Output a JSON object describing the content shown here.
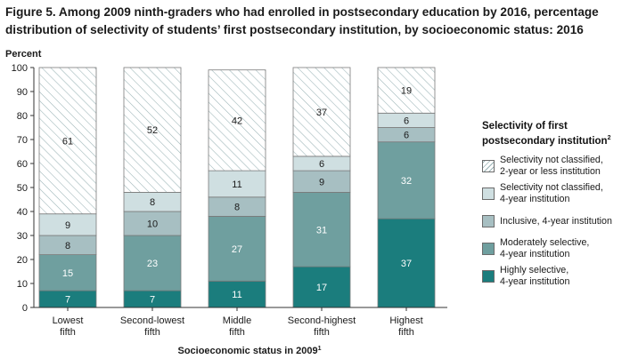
{
  "title": {
    "line1": "Figure 5. Among 2009 ninth-graders who had enrolled in postsecondary education by 2016, percentage",
    "line2": "distribution of selectivity of students’ first postsecondary institution, by socioeconomic status: 2016"
  },
  "chart_data": {
    "type": "bar",
    "stacked": true,
    "ylabel": "Percent",
    "xlabel": "Socioeconomic status in 2009",
    "xlabel_footnote": "1",
    "ylim": [
      0,
      100
    ],
    "yticks": [
      "0",
      "10",
      "20",
      "30",
      "40",
      "50",
      "60",
      "70",
      "80",
      "90",
      "100"
    ],
    "grid": false,
    "legend_position": "right",
    "categories": [
      [
        "Lowest",
        "fifth"
      ],
      [
        "Second-lowest",
        "fifth"
      ],
      [
        "Middle",
        "fifth"
      ],
      [
        "Second-highest",
        "fifth"
      ],
      [
        "Highest",
        "fifth"
      ]
    ],
    "series": [
      {
        "name": "Highly selective, 4-year institution",
        "legend": [
          "Highly selective,",
          "4-year institution"
        ],
        "color": "#1b7d7d",
        "pattern": "solid",
        "label_color": "#ffffff",
        "values": [
          7,
          7,
          11,
          17,
          37
        ]
      },
      {
        "name": "Moderately selective, 4-year institution",
        "legend": [
          "Moderately selective,",
          "4-year institution"
        ],
        "color": "#6f9f9f",
        "pattern": "solid",
        "label_color": "#ffffff",
        "values": [
          15,
          23,
          27,
          31,
          32
        ]
      },
      {
        "name": "Inclusive, 4-year institution",
        "legend": [
          "Inclusive, 4-year institution"
        ],
        "color": "#a7bfc2",
        "pattern": "solid",
        "label_color": "#1a1a1a",
        "values": [
          8,
          10,
          8,
          9,
          6
        ]
      },
      {
        "name": "Selectivity not classified, 4-year institution",
        "legend": [
          "Selectivity not classified,",
          "4-year institution"
        ],
        "color": "#cfdfe1",
        "pattern": "solid",
        "label_color": "#1a1a1a",
        "values": [
          9,
          8,
          11,
          6,
          6
        ]
      },
      {
        "name": "Selectivity not classified, 2-year or less institution",
        "legend": [
          "Selectivity not classified,",
          "2-year or less institution"
        ],
        "color": "#ffffff",
        "pattern": "hatch",
        "label_color": "#1a1a1a",
        "values": [
          61,
          52,
          42,
          37,
          19
        ]
      }
    ]
  },
  "legend": {
    "title_line1": "Selectivity of first",
    "title_line2": "postsecondary institution",
    "title_footnote": "2"
  }
}
